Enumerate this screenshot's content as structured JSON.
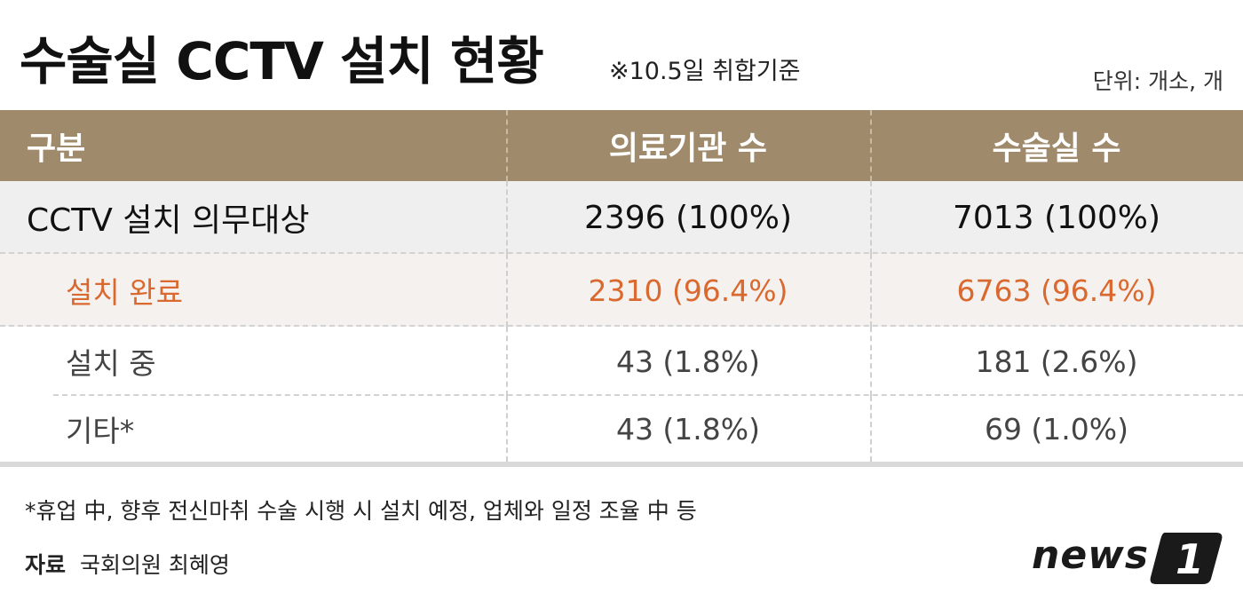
{
  "header": {
    "title": "수술실 CCTV 설치 현황",
    "note": "※10.5일 취합기준",
    "unit": "단위: 개소, 개"
  },
  "table": {
    "columns": [
      "구분",
      "의료기관 수",
      "수술실 수"
    ],
    "rows": [
      {
        "label": "CCTV 설치 의무대상",
        "institutions": "2396 (100%)",
        "rooms": "7013 (100%)"
      },
      {
        "label": "설치 완료",
        "institutions": "2310 (96.4%)",
        "rooms": "6763 (96.4%)"
      },
      {
        "label": "설치 중",
        "institutions": "43 (1.8%)",
        "rooms": "181 (2.6%)"
      },
      {
        "label": "기타*",
        "institutions": "43 (1.8%)",
        "rooms": "69 (1.0%)"
      }
    ]
  },
  "footnote": "*휴업 中, 향후 전신마취 수술 시행 시 설치 예정, 업체와 일정 조율 中 등",
  "source": {
    "label": "자료",
    "value": "국회의원 최혜영"
  },
  "logo": {
    "text": "news",
    "numeral": "1",
    "color": "#1a1a1a"
  },
  "colors": {
    "header_bg": "#a08a6c",
    "highlight_text": "#d9692e"
  }
}
